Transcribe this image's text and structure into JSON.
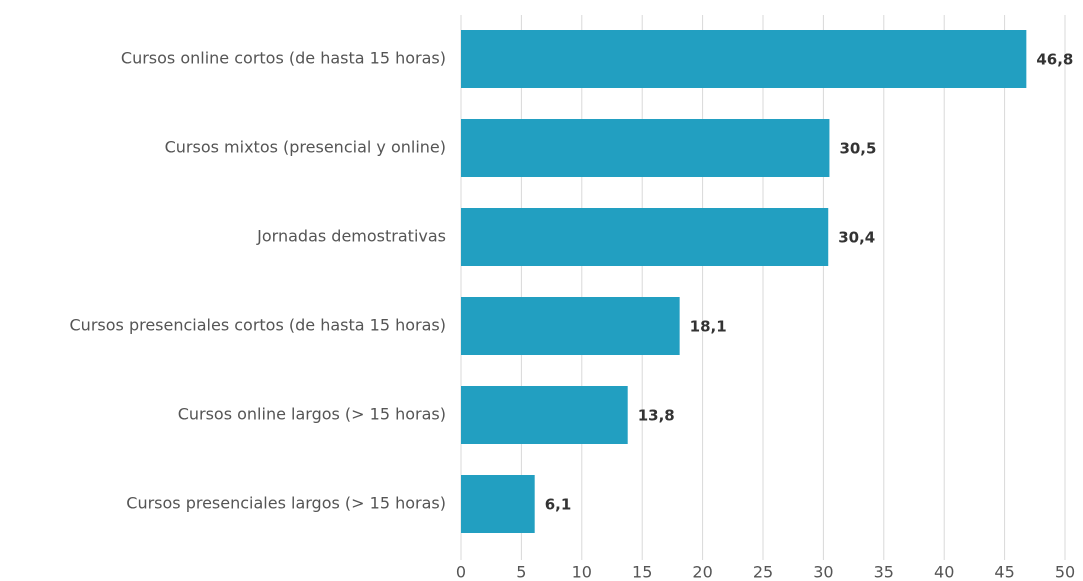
{
  "chart_data": {
    "type": "bar",
    "orientation": "horizontal",
    "categories": [
      "Cursos online cortos (de hasta 15 horas)",
      "Cursos mixtos (presencial y online)",
      "Jornadas demostrativas",
      "Cursos presenciales cortos (de hasta 15 horas)",
      "Cursos online largos (> 15 horas)",
      "Cursos presenciales largos (> 15 horas)"
    ],
    "values": [
      46.8,
      30.5,
      30.4,
      18.1,
      13.8,
      6.1
    ],
    "value_labels": [
      "46,8",
      "30,5",
      "30,4",
      "18,1",
      "13,8",
      "6,1"
    ],
    "color": "#229fc1",
    "xlim": [
      0,
      50
    ],
    "xticks": [
      0,
      5,
      10,
      15,
      20,
      25,
      30,
      35,
      40,
      45,
      50
    ],
    "grid": true
  }
}
